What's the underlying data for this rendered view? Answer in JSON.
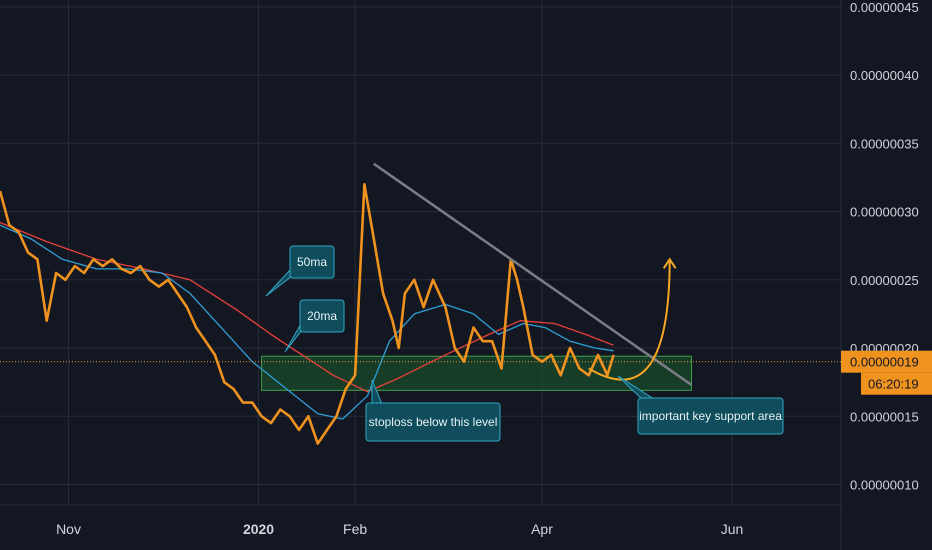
{
  "colors": {
    "background": "#131722",
    "grid": "#262b3a",
    "price": "#f0921e",
    "ma20": "#2f9fd6",
    "ma50": "#e8413c",
    "trendline": "#7b7d86",
    "support_fill": "#1c5b2c",
    "support_stroke": "#3ea04a",
    "callout_fill": "#0f4c5c",
    "callout_stroke": "#2fa9c4",
    "arrow": "#f5a623",
    "axis_text": "#d1d4dc",
    "current_label_bg": "#f0921e",
    "timer_bg": "#f0921e"
  },
  "chart_data": {
    "type": "line",
    "title": "",
    "xlabel": "",
    "ylabel": "",
    "x_ticks": [
      "Nov",
      "2020",
      "Feb",
      "Apr",
      "Jun"
    ],
    "y_ticks": [
      "0.00000010",
      "0.00000015",
      "0.00000020",
      "0.00000025",
      "0.00000030",
      "0.00000035",
      "0.00000040",
      "0.00000045"
    ],
    "y_range": [
      8.5e-08,
      4.55e-07
    ],
    "x_range": [
      "2019-10-10",
      "2020-07-06"
    ],
    "current_price_label": "0.00000019",
    "countdown_label": "06:20:19",
    "series": [
      {
        "key": "price",
        "x": [
          "2019-10-10",
          "2019-10-13",
          "2019-10-16",
          "2019-10-19",
          "2019-10-22",
          "2019-10-25",
          "2019-10-28",
          "2019-10-31",
          "2019-11-03",
          "2019-11-06",
          "2019-11-09",
          "2019-11-12",
          "2019-11-15",
          "2019-11-18",
          "2019-11-21",
          "2019-11-24",
          "2019-11-27",
          "2019-11-30",
          "2019-12-03",
          "2019-12-06",
          "2019-12-09",
          "2019-12-12",
          "2019-12-15",
          "2019-12-18",
          "2019-12-21",
          "2019-12-24",
          "2019-12-27",
          "2019-12-30",
          "2020-01-02",
          "2020-01-05",
          "2020-01-08",
          "2020-01-11",
          "2020-01-14",
          "2020-01-17",
          "2020-01-20",
          "2020-01-23",
          "2020-01-26",
          "2020-01-29",
          "2020-02-01",
          "2020-02-04",
          "2020-02-07",
          "2020-02-10",
          "2020-02-13",
          "2020-02-15",
          "2020-02-17",
          "2020-02-20",
          "2020-02-23",
          "2020-02-26",
          "2020-03-01",
          "2020-03-04",
          "2020-03-07",
          "2020-03-10",
          "2020-03-13",
          "2020-03-16",
          "2020-03-19",
          "2020-03-22",
          "2020-03-24",
          "2020-03-26",
          "2020-03-29",
          "2020-04-01",
          "2020-04-04",
          "2020-04-07",
          "2020-04-10",
          "2020-04-13",
          "2020-04-16",
          "2020-04-19",
          "2020-04-22",
          "2020-04-24"
        ],
        "y": [
          3.15e-07,
          2.9e-07,
          2.85e-07,
          2.7e-07,
          2.65e-07,
          2.2e-07,
          2.55e-07,
          2.5e-07,
          2.6e-07,
          2.55e-07,
          2.65e-07,
          2.6e-07,
          2.65e-07,
          2.58e-07,
          2.55e-07,
          2.6e-07,
          2.5e-07,
          2.45e-07,
          2.5e-07,
          2.4e-07,
          2.3e-07,
          2.15e-07,
          2.05e-07,
          1.95e-07,
          1.75e-07,
          1.7e-07,
          1.6e-07,
          1.6e-07,
          1.5e-07,
          1.45e-07,
          1.55e-07,
          1.5e-07,
          1.4e-07,
          1.5e-07,
          1.3e-07,
          1.4e-07,
          1.5e-07,
          1.7e-07,
          1.8e-07,
          3.2e-07,
          2.8e-07,
          2.4e-07,
          2.2e-07,
          2e-07,
          2.4e-07,
          2.5e-07,
          2.3e-07,
          2.5e-07,
          2.3e-07,
          2e-07,
          1.9e-07,
          2.15e-07,
          2.05e-07,
          2.05e-07,
          1.85e-07,
          2.65e-07,
          2.5e-07,
          2.3e-07,
          1.95e-07,
          1.9e-07,
          1.95e-07,
          1.8e-07,
          2e-07,
          1.85e-07,
          1.8e-07,
          1.95e-07,
          1.8e-07,
          1.95e-07
        ]
      },
      {
        "key": "ma20",
        "x": [
          "2019-10-10",
          "2019-10-20",
          "2019-10-30",
          "2019-11-10",
          "2019-11-20",
          "2019-12-01",
          "2019-12-10",
          "2019-12-20",
          "2019-12-30",
          "2020-01-10",
          "2020-01-20",
          "2020-01-28",
          "2020-02-05",
          "2020-02-12",
          "2020-02-20",
          "2020-03-01",
          "2020-03-10",
          "2020-03-18",
          "2020-03-26",
          "2020-04-02",
          "2020-04-10",
          "2020-04-18",
          "2020-04-24"
        ],
        "y": [
          2.9e-07,
          2.8e-07,
          2.65e-07,
          2.58e-07,
          2.58e-07,
          2.55e-07,
          2.4e-07,
          2.15e-07,
          1.9e-07,
          1.7e-07,
          1.52e-07,
          1.48e-07,
          1.65e-07,
          2.05e-07,
          2.25e-07,
          2.32e-07,
          2.25e-07,
          2.1e-07,
          2.18e-07,
          2.15e-07,
          2.05e-07,
          2e-07,
          1.98e-07
        ]
      },
      {
        "key": "ma50",
        "x": [
          "2019-10-10",
          "2019-10-25",
          "2019-11-10",
          "2019-11-25",
          "2019-12-10",
          "2019-12-25",
          "2020-01-05",
          "2020-01-15",
          "2020-01-25",
          "2020-02-05",
          "2020-02-15",
          "2020-03-01",
          "2020-03-15",
          "2020-03-25",
          "2020-04-05",
          "2020-04-15",
          "2020-04-24"
        ],
        "y": [
          2.92e-07,
          2.78e-07,
          2.65e-07,
          2.58e-07,
          2.5e-07,
          2.28e-07,
          2.1e-07,
          1.95e-07,
          1.8e-07,
          1.68e-07,
          1.78e-07,
          1.95e-07,
          2.1e-07,
          2.2e-07,
          2.18e-07,
          2.1e-07,
          2.02e-07
        ]
      }
    ],
    "annotations": {
      "ma50_label": "50ma",
      "ma20_label": "20ma",
      "stoploss_label": "stoploss below this level",
      "support_label": "important key support area"
    }
  }
}
